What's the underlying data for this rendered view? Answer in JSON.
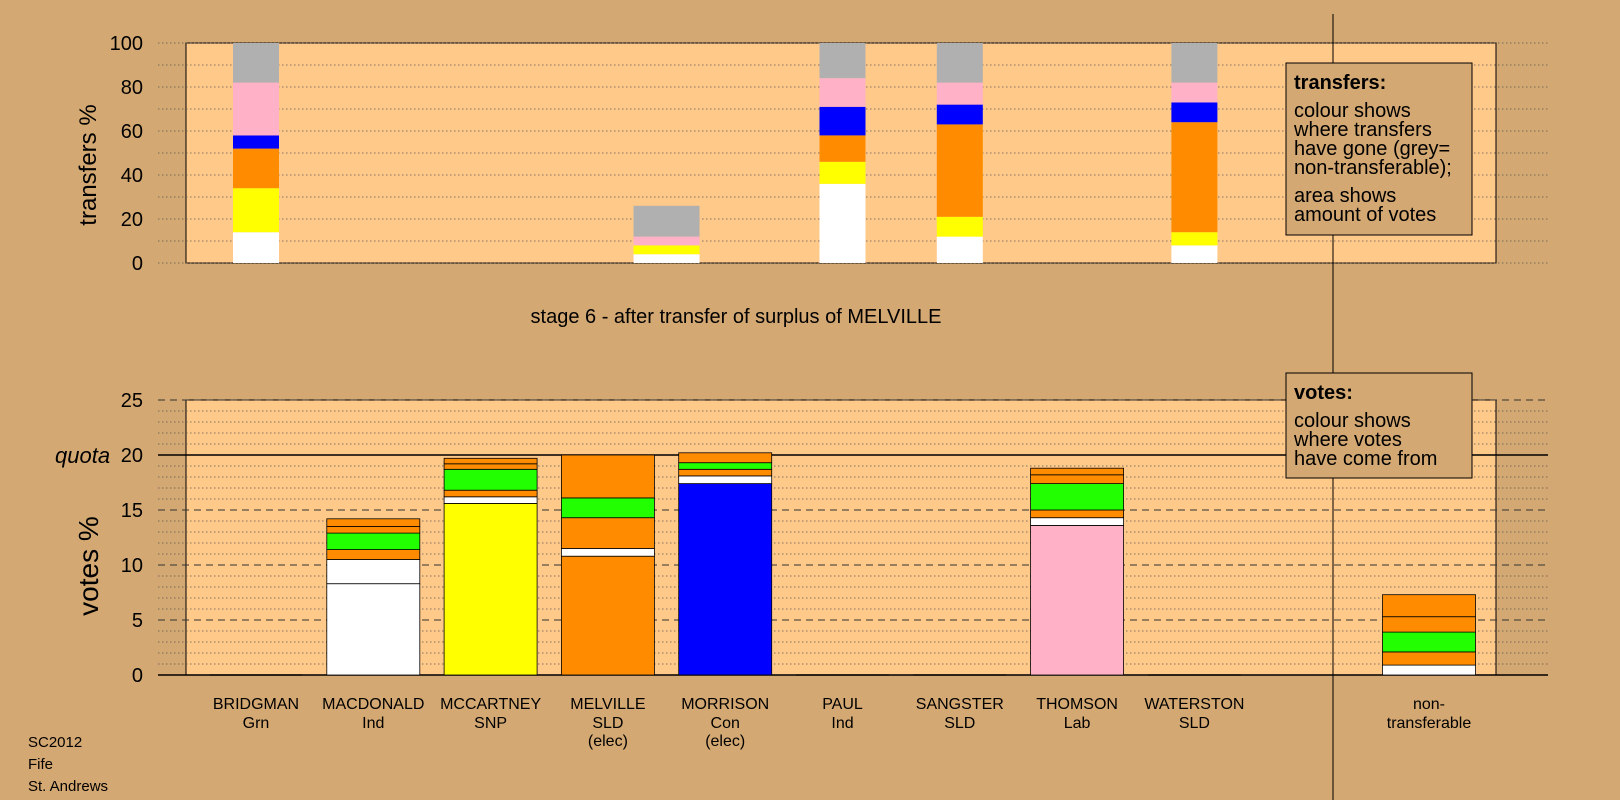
{
  "colors": {
    "background": "#d4a872",
    "plot_area": "#ffc98a",
    "grey": "#b0b0b0",
    "pink": "#ffb1c8",
    "blue": "#0000ff",
    "orange": "#ff8c00",
    "yellow": "#ffff00",
    "white": "#ffffff",
    "green": "#22ff00"
  },
  "top_legend": {
    "title": "transfers:",
    "lines": [
      "colour shows",
      "where transfers",
      "have gone (grey=",
      "non-transferable);"
    ],
    "lines2": [
      "area shows",
      "amount of votes"
    ]
  },
  "bottom_legend": {
    "title": "votes:",
    "lines": [
      "colour shows",
      "where votes",
      "have come from"
    ]
  },
  "stage_label": "stage 6 - after transfer of surplus of MELVILLE",
  "footer": [
    "SC2012",
    "Fife",
    "St. Andrews"
  ],
  "candidates": [
    {
      "name": "BRIDGMAN",
      "party": "Grn",
      "note": ""
    },
    {
      "name": "MACDONALD",
      "party": "Ind",
      "note": ""
    },
    {
      "name": "MCCARTNEY",
      "party": "SNP",
      "note": ""
    },
    {
      "name": "MELVILLE",
      "party": "SLD",
      "note": "(elec)"
    },
    {
      "name": "MORRISON",
      "party": "Con",
      "note": "(elec)"
    },
    {
      "name": "PAUL",
      "party": "Ind",
      "note": ""
    },
    {
      "name": "SANGSTER",
      "party": "SLD",
      "note": ""
    },
    {
      "name": "THOMSON",
      "party": "Lab",
      "note": ""
    },
    {
      "name": "WATERSTON",
      "party": "SLD",
      "note": ""
    },
    {
      "name": "non-",
      "party": "transferable",
      "note": ""
    }
  ],
  "chart_data": [
    {
      "type": "bar",
      "subtype": "stacked",
      "ylabel": "transfers %",
      "ylim": [
        0,
        100
      ],
      "yticks": [
        0,
        20,
        40,
        60,
        80,
        100
      ],
      "grid": "dotted every 10",
      "bars": [
        {
          "slot": 0,
          "width": "narrow",
          "segments": [
            {
              "color": "white",
              "from": 0,
              "to": 14
            },
            {
              "color": "yellow",
              "from": 14,
              "to": 34
            },
            {
              "color": "orange",
              "from": 34,
              "to": 52
            },
            {
              "color": "blue",
              "from": 52,
              "to": 58
            },
            {
              "color": "pink",
              "from": 58,
              "to": 82
            },
            {
              "color": "grey",
              "from": 82,
              "to": 100
            }
          ]
        },
        {
          "slot": 3.5,
          "width": "wide",
          "segments": [
            {
              "color": "white",
              "from": 0,
              "to": 4
            },
            {
              "color": "yellow",
              "from": 4,
              "to": 8
            },
            {
              "color": "pink",
              "from": 8,
              "to": 12
            },
            {
              "color": "grey",
              "from": 12,
              "to": 26
            }
          ]
        },
        {
          "slot": 5,
          "width": "narrow",
          "segments": [
            {
              "color": "white",
              "from": 0,
              "to": 36
            },
            {
              "color": "yellow",
              "from": 36,
              "to": 46
            },
            {
              "color": "orange",
              "from": 46,
              "to": 58
            },
            {
              "color": "blue",
              "from": 58,
              "to": 71
            },
            {
              "color": "pink",
              "from": 71,
              "to": 84
            },
            {
              "color": "grey",
              "from": 84,
              "to": 100
            }
          ]
        },
        {
          "slot": 6,
          "width": "narrow",
          "segments": [
            {
              "color": "white",
              "from": 0,
              "to": 12
            },
            {
              "color": "yellow",
              "from": 12,
              "to": 21
            },
            {
              "color": "orange",
              "from": 21,
              "to": 63
            },
            {
              "color": "blue",
              "from": 63,
              "to": 72
            },
            {
              "color": "pink",
              "from": 72,
              "to": 82
            },
            {
              "color": "grey",
              "from": 82,
              "to": 100
            }
          ]
        },
        {
          "slot": 8,
          "width": "narrow",
          "segments": [
            {
              "color": "white",
              "from": 0,
              "to": 8
            },
            {
              "color": "yellow",
              "from": 8,
              "to": 14
            },
            {
              "color": "orange",
              "from": 14,
              "to": 64
            },
            {
              "color": "blue",
              "from": 64,
              "to": 73
            },
            {
              "color": "pink",
              "from": 73,
              "to": 82
            },
            {
              "color": "grey",
              "from": 82,
              "to": 100
            }
          ]
        }
      ]
    },
    {
      "type": "bar",
      "subtype": "stacked",
      "ylabel": "votes %",
      "ylim": [
        0,
        25
      ],
      "yticks": [
        0,
        5,
        10,
        15,
        20,
        25
      ],
      "quota": {
        "label": "quota",
        "value": 20
      },
      "grid": "dashed every 5, dotted every 1",
      "bars": [
        {
          "slot": 0,
          "segments": []
        },
        {
          "slot": 1,
          "segments": [
            {
              "color": "white",
              "from": 0,
              "to": 8.3
            },
            {
              "color": "white",
              "from": 8.3,
              "to": 10.5
            },
            {
              "color": "orange",
              "from": 10.5,
              "to": 11.4
            },
            {
              "color": "green",
              "from": 11.4,
              "to": 12.9
            },
            {
              "color": "orange",
              "from": 12.9,
              "to": 13.5
            },
            {
              "color": "orange",
              "from": 13.5,
              "to": 14.2
            }
          ]
        },
        {
          "slot": 2,
          "segments": [
            {
              "color": "yellow",
              "from": 0,
              "to": 15.6
            },
            {
              "color": "white",
              "from": 15.6,
              "to": 16.2
            },
            {
              "color": "orange",
              "from": 16.2,
              "to": 16.8
            },
            {
              "color": "green",
              "from": 16.8,
              "to": 18.7
            },
            {
              "color": "orange",
              "from": 18.7,
              "to": 19.2
            },
            {
              "color": "orange",
              "from": 19.2,
              "to": 19.7
            }
          ]
        },
        {
          "slot": 3,
          "segments": [
            {
              "color": "orange",
              "from": 0,
              "to": 10.8
            },
            {
              "color": "white",
              "from": 10.8,
              "to": 11.5
            },
            {
              "color": "orange",
              "from": 11.5,
              "to": 14.3
            },
            {
              "color": "green",
              "from": 14.3,
              "to": 16.1
            },
            {
              "color": "orange",
              "from": 16.1,
              "to": 20
            }
          ]
        },
        {
          "slot": 4,
          "segments": [
            {
              "color": "blue",
              "from": 0,
              "to": 17.4
            },
            {
              "color": "white",
              "from": 17.4,
              "to": 18.1
            },
            {
              "color": "orange",
              "from": 18.1,
              "to": 18.7
            },
            {
              "color": "green",
              "from": 18.7,
              "to": 19.3
            },
            {
              "color": "orange",
              "from": 19.3,
              "to": 20.2
            }
          ]
        },
        {
          "slot": 5,
          "segments": []
        },
        {
          "slot": 6,
          "segments": []
        },
        {
          "slot": 7,
          "segments": [
            {
              "color": "pink",
              "from": 0,
              "to": 13.6
            },
            {
              "color": "white",
              "from": 13.6,
              "to": 14.3
            },
            {
              "color": "orange",
              "from": 14.3,
              "to": 15.0
            },
            {
              "color": "green",
              "from": 15.0,
              "to": 17.4
            },
            {
              "color": "orange",
              "from": 17.4,
              "to": 18.2
            },
            {
              "color": "orange",
              "from": 18.2,
              "to": 18.8
            }
          ]
        },
        {
          "slot": 8,
          "segments": []
        },
        {
          "slot": 10,
          "segments": [
            {
              "color": "white",
              "from": 0,
              "to": 0.9
            },
            {
              "color": "orange",
              "from": 0.9,
              "to": 2.1
            },
            {
              "color": "green",
              "from": 2.1,
              "to": 3.9
            },
            {
              "color": "orange",
              "from": 3.9,
              "to": 5.3
            },
            {
              "color": "orange",
              "from": 5.3,
              "to": 7.3
            }
          ]
        }
      ]
    }
  ]
}
